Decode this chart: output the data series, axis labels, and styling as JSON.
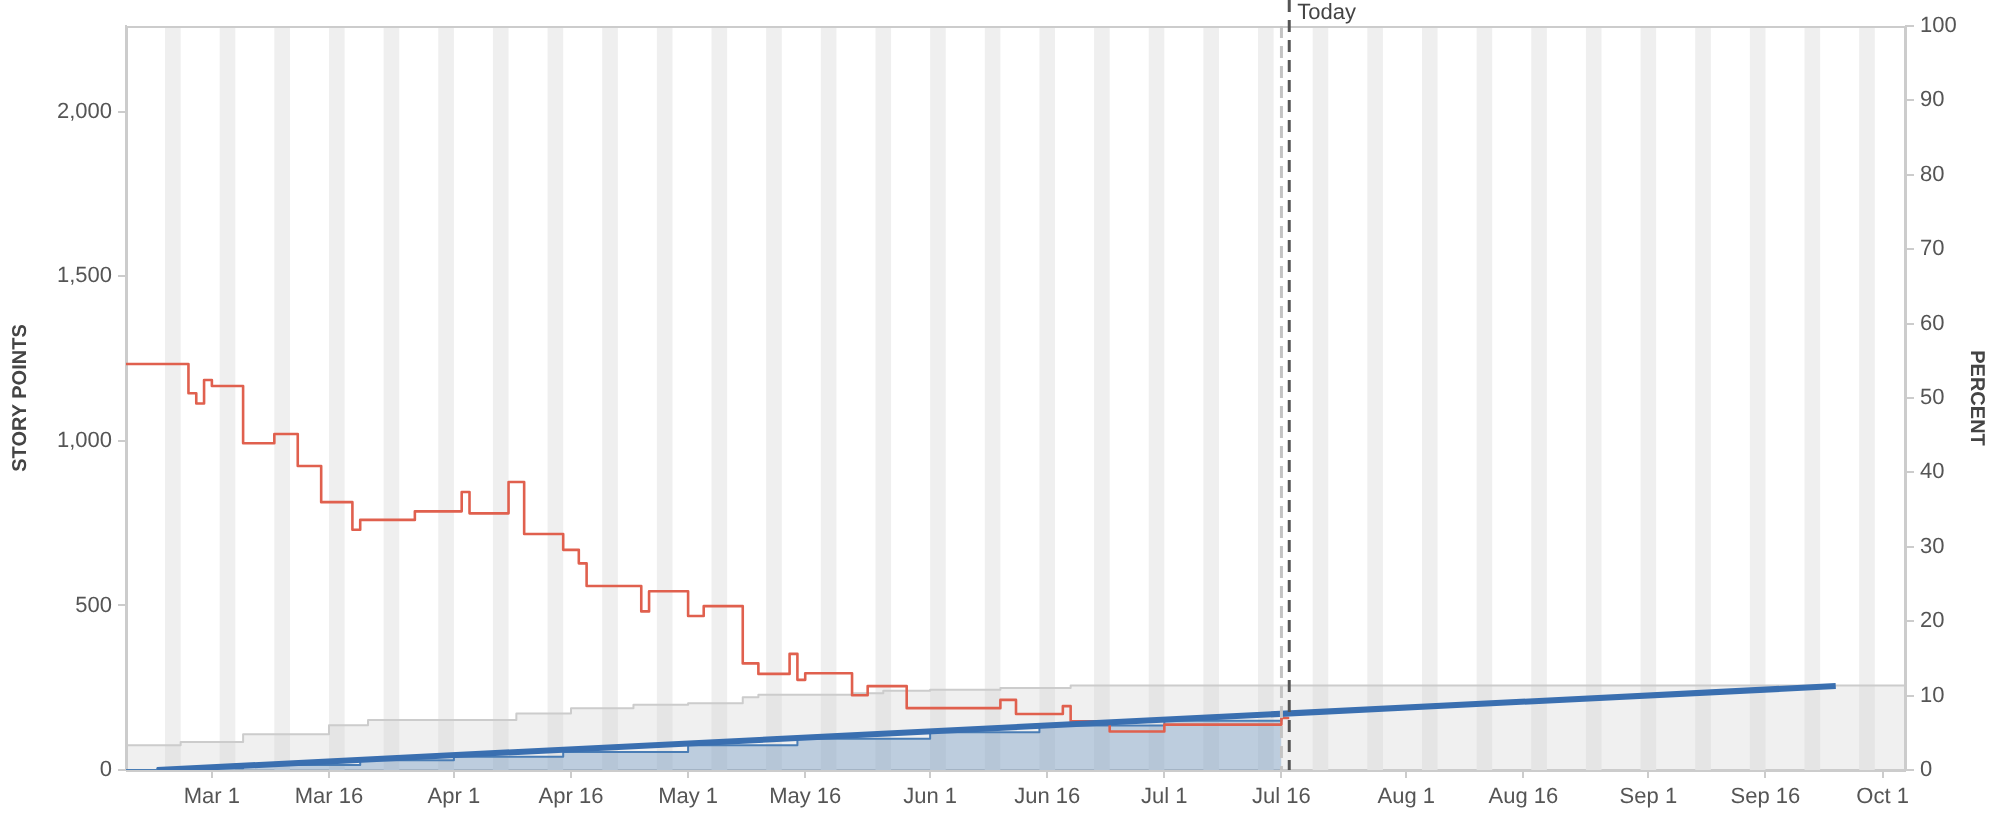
{
  "chart_data": {
    "type": "line",
    "ylabel": "STORY POINTS",
    "y2label": "PERCENT",
    "xlim": [
      "--02-18",
      "--10-04"
    ],
    "xticks": [
      {
        "value": "--03-01",
        "label": "Mar 1"
      },
      {
        "value": "--03-16",
        "label": "Mar 16"
      },
      {
        "value": "--04-01",
        "label": "Apr 1"
      },
      {
        "value": "--04-16",
        "label": "Apr 16"
      },
      {
        "value": "--05-01",
        "label": "May 1"
      },
      {
        "value": "--05-16",
        "label": "May 16"
      },
      {
        "value": "--06-01",
        "label": "Jun 1"
      },
      {
        "value": "--06-16",
        "label": "Jun 16"
      },
      {
        "value": "--07-01",
        "label": "Jul 1"
      },
      {
        "value": "--07-16",
        "label": "Jul 16"
      },
      {
        "value": "--08-01",
        "label": "Aug 1"
      },
      {
        "value": "--08-16",
        "label": "Aug 16"
      },
      {
        "value": "--09-01",
        "label": "Sep 1"
      },
      {
        "value": "--09-16",
        "label": "Sep 16"
      },
      {
        "value": "--10-01",
        "label": "Oct 1"
      }
    ],
    "ylim": [
      0,
      2261
    ],
    "yticks": [
      0,
      500,
      {
        "value": 1000,
        "label": "1,000"
      },
      {
        "value": 1500,
        "label": "1,500"
      },
      {
        "value": 2000,
        "label": "2,000"
      }
    ],
    "y2lim": [
      0,
      100
    ],
    "y2ticks": [
      0,
      10,
      20,
      30,
      40,
      50,
      60,
      70,
      80,
      90,
      100
    ],
    "grid": false,
    "legend": false,
    "series": [
      {
        "type": "area",
        "color": "#cccccc",
        "x": [
          "--02-18",
          "--02-25",
          "--03-05",
          "--03-16",
          "--03-21",
          "--04-09",
          "--04-16",
          "--04-24",
          "--05-01",
          "--05-08",
          "--05-10",
          "--05-22",
          "--05-26",
          "--06-01",
          "--06-10",
          "--06-19",
          "--10-04"
        ],
        "values": [
          75,
          85,
          109,
          136,
          152,
          172,
          188,
          198,
          203,
          221,
          229,
          233,
          241,
          244,
          249,
          257,
          257
        ]
      },
      {
        "type": "area",
        "color": "#4a7db5",
        "x": [
          "--02-18",
          "--02-22",
          "--03-05",
          "--03-20",
          "--04-01",
          "--04-15",
          "--05-01",
          "--05-15",
          "--06-01",
          "--06-15",
          "--07-01",
          "--07-16"
        ],
        "values": [
          0,
          5,
          15,
          30,
          40,
          55,
          75,
          95,
          115,
          135,
          150,
          158
        ]
      },
      {
        "type": "step",
        "color": "#e0604e",
        "x": [
          "--02-18",
          "--02-26",
          "--02-27",
          "--02-28",
          "--03-01",
          "--03-05",
          "--03-09",
          "--03-12",
          "--03-15",
          "--03-19",
          "--03-20",
          "--03-27",
          "--04-02",
          "--04-03",
          "--04-08",
          "--04-10",
          "--04-15",
          "--04-17",
          "--04-18",
          "--04-25",
          "--04-26",
          "--05-01",
          "--05-03",
          "--05-08",
          "--05-10",
          "--05-14",
          "--05-15",
          "--05-16",
          "--05-22",
          "--05-24",
          "--05-29",
          "--06-10",
          "--06-12",
          "--06-18",
          "--06-19",
          "--06-24",
          "--07-01",
          "--07-16",
          "--07-17"
        ],
        "values": [
          1234,
          1145,
          1114,
          1185,
          1167,
          993,
          1021,
          924,
          814,
          730,
          760,
          786,
          845,
          780,
          875,
          717,
          669,
          628,
          559,
          482,
          543,
          468,
          498,
          324,
          292,
          353,
          274,
          294,
          227,
          255,
          188,
          213,
          170,
          194,
          148,
          117,
          138,
          158,
          158
        ]
      },
      {
        "type": "line",
        "color": "#3a6fb0",
        "x": [
          "--02-22",
          "--09-25"
        ],
        "values": [
          0,
          255
        ]
      }
    ],
    "ref_lines": [
      {
        "axis": "x",
        "value": "--07-16",
        "color": "#c4c4c4",
        "line_style": "dashed"
      },
      {
        "axis": "x",
        "value": "--07-17",
        "label": "Today",
        "color": "#555555",
        "line_style": "dashed"
      }
    ],
    "bands": [
      {
        "axis": "x",
        "from": "--02-23",
        "to": "--02-25",
        "color": "#efefef"
      },
      {
        "axis": "x",
        "from": "--03-02",
        "to": "--03-04",
        "color": "#efefef"
      },
      {
        "axis": "x",
        "from": "--03-09",
        "to": "--03-11",
        "color": "#efefef"
      },
      {
        "axis": "x",
        "from": "--03-16",
        "to": "--03-18",
        "color": "#efefef"
      },
      {
        "axis": "x",
        "from": "--03-23",
        "to": "--03-25",
        "color": "#efefef"
      },
      {
        "axis": "x",
        "from": "--03-30",
        "to": "--04-01",
        "color": "#efefef"
      },
      {
        "axis": "x",
        "from": "--04-06",
        "to": "--04-08",
        "color": "#efefef"
      },
      {
        "axis": "x",
        "from": "--04-13",
        "to": "--04-15",
        "color": "#efefef"
      },
      {
        "axis": "x",
        "from": "--04-20",
        "to": "--04-22",
        "color": "#efefef"
      },
      {
        "axis": "x",
        "from": "--04-27",
        "to": "--04-29",
        "color": "#efefef"
      },
      {
        "axis": "x",
        "from": "--05-04",
        "to": "--05-06",
        "color": "#efefef"
      },
      {
        "axis": "x",
        "from": "--05-11",
        "to": "--05-13",
        "color": "#efefef"
      },
      {
        "axis": "x",
        "from": "--05-18",
        "to": "--05-20",
        "color": "#efefef"
      },
      {
        "axis": "x",
        "from": "--05-25",
        "to": "--05-27",
        "color": "#efefef"
      },
      {
        "axis": "x",
        "from": "--06-01",
        "to": "--06-03",
        "color": "#efefef"
      },
      {
        "axis": "x",
        "from": "--06-08",
        "to": "--06-10",
        "color": "#efefef"
      },
      {
        "axis": "x",
        "from": "--06-15",
        "to": "--06-17",
        "color": "#efefef"
      },
      {
        "axis": "x",
        "from": "--06-22",
        "to": "--06-24",
        "color": "#efefef"
      },
      {
        "axis": "x",
        "from": "--06-29",
        "to": "--07-01",
        "color": "#efefef"
      },
      {
        "axis": "x",
        "from": "--07-06",
        "to": "--07-08",
        "color": "#efefef"
      },
      {
        "axis": "x",
        "from": "--07-13",
        "to": "--07-15",
        "color": "#efefef"
      },
      {
        "axis": "x",
        "from": "--07-20",
        "to": "--07-22",
        "color": "#efefef"
      },
      {
        "axis": "x",
        "from": "--07-27",
        "to": "--07-29",
        "color": "#efefef"
      },
      {
        "axis": "x",
        "from": "--08-03",
        "to": "--08-05",
        "color": "#efefef"
      },
      {
        "axis": "x",
        "from": "--08-10",
        "to": "--08-12",
        "color": "#efefef"
      },
      {
        "axis": "x",
        "from": "--08-17",
        "to": "--08-19",
        "color": "#efefef"
      },
      {
        "axis": "x",
        "from": "--08-24",
        "to": "--08-26",
        "color": "#efefef"
      },
      {
        "axis": "x",
        "from": "--08-31",
        "to": "--09-02",
        "color": "#efefef"
      },
      {
        "axis": "x",
        "from": "--09-07",
        "to": "--09-09",
        "color": "#efefef"
      },
      {
        "axis": "x",
        "from": "--09-14",
        "to": "--09-16",
        "color": "#efefef"
      },
      {
        "axis": "x",
        "from": "--09-21",
        "to": "--09-23",
        "color": "#efefef"
      },
      {
        "axis": "x",
        "from": "--09-28",
        "to": "--09-30",
        "color": "#efefef"
      }
    ]
  }
}
